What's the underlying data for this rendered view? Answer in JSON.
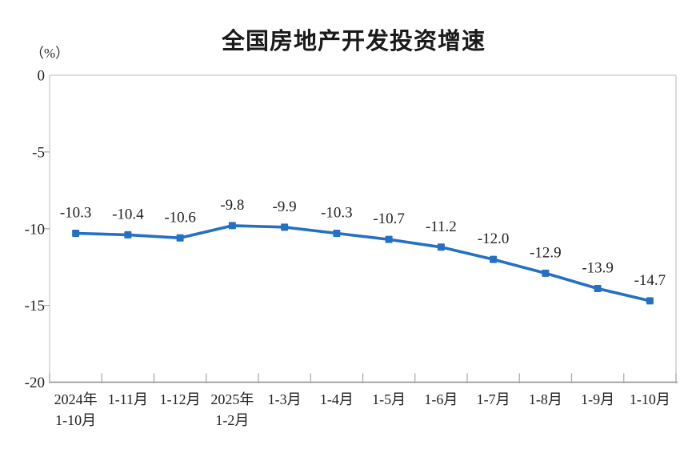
{
  "chart_data": {
    "type": "line",
    "title": "全国房地产开发投资增速",
    "unit_label": "（%）",
    "categories": [
      "2024年\n1-10月",
      "1-11月",
      "1-12月",
      "2025年\n1-2月",
      "1-3月",
      "1-4月",
      "1-5月",
      "1-6月",
      "1-7月",
      "1-8月",
      "1-9月",
      "1-10月"
    ],
    "values": [
      -10.3,
      -10.4,
      -10.6,
      -9.8,
      -9.9,
      -10.3,
      -10.7,
      -11.2,
      -12.0,
      -12.9,
      -13.9,
      -14.7
    ],
    "data_labels": [
      "-10.3",
      "-10.4",
      "-10.6",
      "-9.8",
      "-9.9",
      "-10.3",
      "-10.7",
      "-11.2",
      "-12.0",
      "-12.9",
      "-13.9",
      "-14.7"
    ],
    "xlabel": "",
    "ylabel": "（%）",
    "ylim": [
      -20,
      0
    ],
    "yticks": [
      0,
      -5,
      -10,
      -15,
      -20
    ],
    "ytick_labels": [
      "0",
      "-5",
      "-10",
      "-15",
      "-20"
    ],
    "grid": false,
    "legend_position": "none",
    "series_name": "全国房地产开发投资增速",
    "series_color": "#2471C4",
    "marker_shape": "square",
    "axis_line_color": "#8C8C8C",
    "border_color": "#C9C9C9",
    "tick_color": "#A6A6A6",
    "label_color": "#222222"
  }
}
